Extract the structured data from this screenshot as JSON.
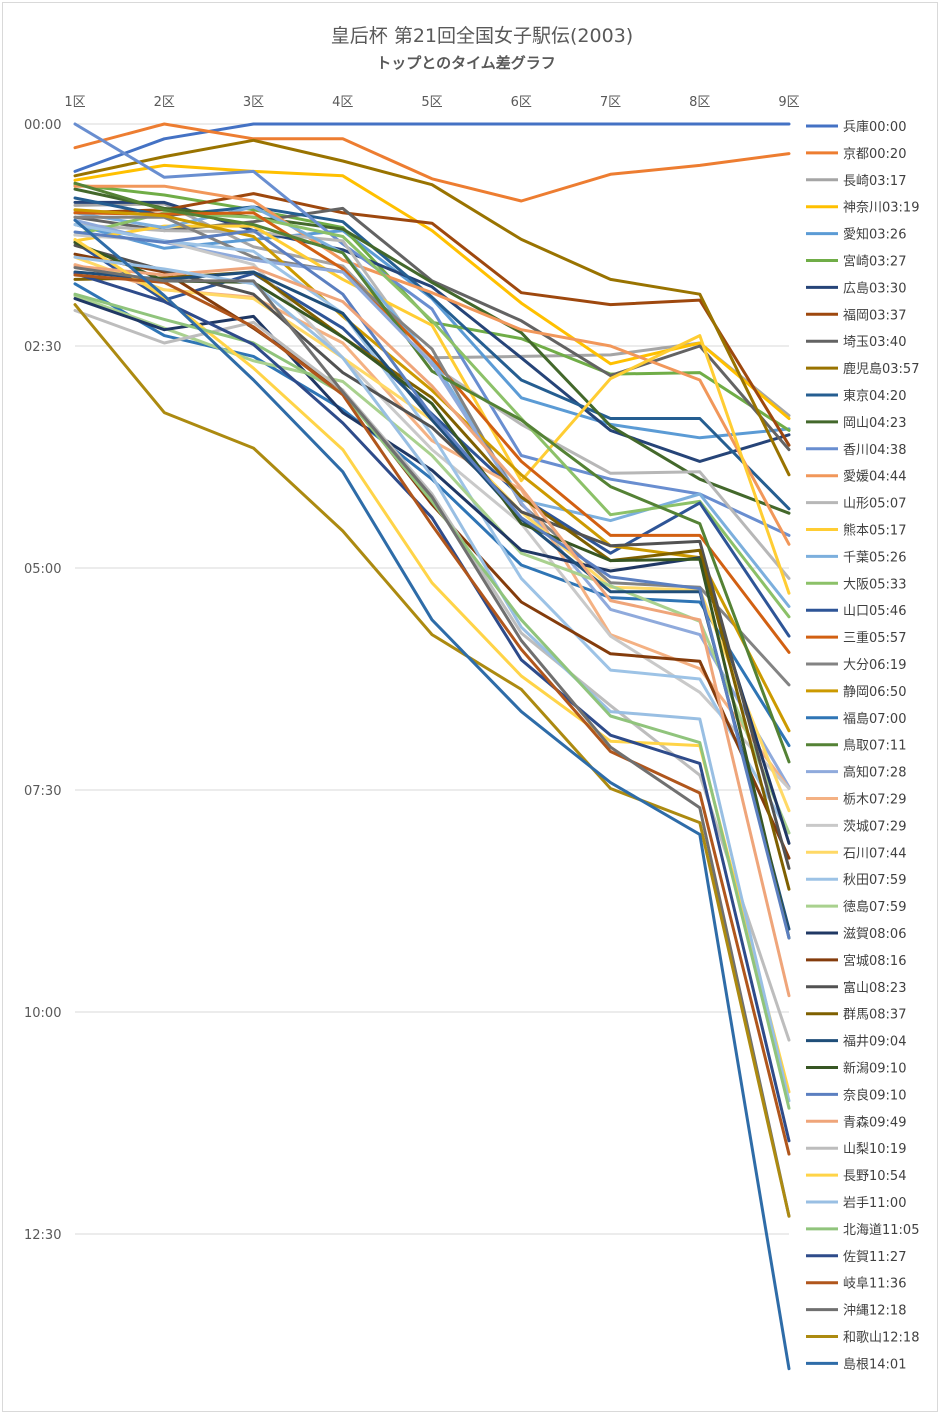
{
  "chart_data": {
    "type": "line",
    "title": "皇后杯 第21回全国女子駅伝(2003)",
    "subtitle": "トップとのタイム差グラフ",
    "xlabel": "",
    "ylabel": "",
    "categories": [
      "1区",
      "2区",
      "3区",
      "4区",
      "5区",
      "6区",
      "7区",
      "8区",
      "9区"
    ],
    "y_unit": "seconds behind leader",
    "y_axis_inverted": true,
    "ylim": [
      0,
      750
    ],
    "yticks": [
      0,
      150,
      300,
      450,
      600,
      750
    ],
    "ytick_labels": [
      "00:00",
      "02:30",
      "05:00",
      "07:30",
      "10:00",
      "12:30"
    ],
    "grid": true,
    "legend_position": "right",
    "series": [
      {
        "name": "兵庫00:00",
        "color": "#4472C4",
        "values": [
          32,
          10,
          0,
          0,
          0,
          0,
          0,
          0,
          0
        ]
      },
      {
        "name": "京都00:20",
        "color": "#ED7D31",
        "values": [
          16,
          0,
          10,
          10,
          37,
          52,
          34,
          28,
          20
        ]
      },
      {
        "name": "長崎03:17",
        "color": "#A5A5A5",
        "values": [
          55,
          54,
          83,
          96,
          158,
          157,
          156,
          148,
          197
        ]
      },
      {
        "name": "神奈川03:19",
        "color": "#FFC000",
        "values": [
          38,
          28,
          32,
          35,
          72,
          121,
          162,
          148,
          199
        ]
      },
      {
        "name": "愛知03:26",
        "color": "#5B9BD5",
        "values": [
          68,
          84,
          78,
          72,
          118,
          185,
          203,
          212,
          206
        ]
      },
      {
        "name": "宮崎03:27",
        "color": "#70AD47",
        "values": [
          41,
          48,
          58,
          70,
          134,
          145,
          169,
          168,
          207
        ]
      },
      {
        "name": "広島03:30",
        "color": "#264478",
        "values": [
          53,
          53,
          72,
          85,
          110,
          158,
          207,
          228,
          210
        ]
      },
      {
        "name": "福岡03:37",
        "color": "#9E480E",
        "values": [
          60,
          58,
          47,
          60,
          67,
          114,
          122,
          119,
          217
        ]
      },
      {
        "name": "埼玉03:40",
        "color": "#636363",
        "values": [
          63,
          72,
          66,
          57,
          106,
          133,
          170,
          150,
          220
        ]
      },
      {
        "name": "鹿児島03:57",
        "color": "#997300",
        "values": [
          35,
          22,
          11,
          25,
          41,
          78,
          105,
          115,
          237
        ]
      },
      {
        "name": "東京04:20",
        "color": "#255E91",
        "values": [
          50,
          62,
          56,
          66,
          117,
          173,
          199,
          199,
          260
        ]
      },
      {
        "name": "岡山04:23",
        "color": "#43682B",
        "values": [
          44,
          57,
          63,
          71,
          107,
          141,
          204,
          240,
          263
        ]
      },
      {
        "name": "香川04:38",
        "color": "#698ED0",
        "values": [
          0,
          36,
          32,
          81,
          125,
          224,
          240,
          250,
          278
        ]
      },
      {
        "name": "愛媛04:44",
        "color": "#F1975A",
        "values": [
          42,
          42,
          52,
          92,
          114,
          139,
          150,
          173,
          284
        ]
      },
      {
        "name": "山形05:07",
        "color": "#B7B7B7",
        "values": [
          68,
          72,
          73,
          79,
          163,
          203,
          236,
          235,
          307
        ]
      },
      {
        "name": "熊本05:17",
        "color": "#FFCD33",
        "values": [
          79,
          69,
          69,
          105,
          136,
          241,
          172,
          143,
          317
        ]
      },
      {
        "name": "千葉05:26",
        "color": "#7CAFDD",
        "values": [
          60,
          70,
          56,
          87,
          159,
          254,
          268,
          250,
          326
        ]
      },
      {
        "name": "大阪05:33",
        "color": "#8CC168",
        "values": [
          75,
          60,
          63,
          76,
          133,
          199,
          264,
          255,
          333
        ]
      },
      {
        "name": "山口05:46",
        "color": "#2E5597",
        "values": [
          80,
          119,
          101,
          138,
          196,
          252,
          290,
          256,
          346
        ]
      },
      {
        "name": "三重05:57",
        "color": "#D26012",
        "values": [
          60,
          61,
          60,
          98,
          158,
          228,
          278,
          278,
          357
        ]
      },
      {
        "name": "大分06:19",
        "color": "#838383",
        "values": [
          63,
          63,
          90,
          100,
          152,
          257,
          310,
          313,
          379
        ]
      },
      {
        "name": "静岡06:50",
        "color": "#CC9A00",
        "values": [
          58,
          62,
          76,
          130,
          180,
          237,
          285,
          293,
          410
        ]
      },
      {
        "name": "福島07:00",
        "color": "#2F75B5",
        "values": [
          108,
          143,
          157,
          193,
          240,
          298,
          320,
          323,
          420
        ]
      },
      {
        "name": "鳥取07:11",
        "color": "#548235",
        "values": [
          40,
          58,
          68,
          87,
          167,
          200,
          245,
          270,
          431
        ]
      },
      {
        "name": "高知07:28",
        "color": "#8FAADC",
        "values": [
          65,
          80,
          92,
          100,
          162,
          256,
          328,
          345,
          448
        ]
      },
      {
        "name": "栃木07:29",
        "color": "#F4B183",
        "values": [
          95,
          112,
          117,
          148,
          214,
          247,
          345,
          368,
          449
        ]
      },
      {
        "name": "茨城07:29",
        "color": "#C9C9C9",
        "values": [
          75,
          79,
          95,
          158,
          220,
          270,
          346,
          384,
          449
        ]
      },
      {
        "name": "石川07:44",
        "color": "#FFD966",
        "values": [
          90,
          112,
          118,
          158,
          200,
          262,
          313,
          315,
          464
        ]
      },
      {
        "name": "秋田07:59",
        "color": "#9DC3E6",
        "values": [
          68,
          79,
          86,
          128,
          210,
          307,
          369,
          375,
          479
        ]
      },
      {
        "name": "徳島07:59",
        "color": "#A9D18E",
        "values": [
          116,
          138,
          160,
          174,
          224,
          290,
          312,
          336,
          479
        ]
      },
      {
        "name": "滋賀08:06",
        "color": "#203864",
        "values": [
          118,
          139,
          130,
          195,
          234,
          288,
          302,
          293,
          486
        ]
      },
      {
        "name": "宮城08:16",
        "color": "#843C0C",
        "values": [
          88,
          100,
          138,
          180,
          257,
          323,
          358,
          363,
          496
        ]
      },
      {
        "name": "富山08:23",
        "color": "#525252",
        "values": [
          82,
          99,
          115,
          168,
          205,
          262,
          285,
          282,
          503
        ]
      },
      {
        "name": "群馬08:37",
        "color": "#7F6000",
        "values": [
          105,
          104,
          100,
          144,
          185,
          252,
          295,
          288,
          517
        ]
      },
      {
        "name": "福井09:04",
        "color": "#1F4E79",
        "values": [
          100,
          105,
          100,
          128,
          200,
          267,
          316,
          316,
          544
        ]
      },
      {
        "name": "新潟09:10",
        "color": "#375623",
        "values": [
          80,
          106,
          107,
          144,
          189,
          270,
          295,
          294,
          550
        ]
      },
      {
        "name": "奈良09:10",
        "color": "#5B7FC0",
        "values": [
          73,
          80,
          72,
          115,
          197,
          266,
          306,
          314,
          550
        ]
      },
      {
        "name": "青森09:49",
        "color": "#EFA57A",
        "values": [
          96,
          102,
          97,
          120,
          177,
          246,
          322,
          335,
          589
        ]
      },
      {
        "name": "山梨10:19",
        "color": "#BDBDBD",
        "values": [
          126,
          148,
          134,
          180,
          250,
          344,
          393,
          440,
          619
        ]
      },
      {
        "name": "長野10:54",
        "color": "#FFD448",
        "values": [
          78,
          117,
          165,
          220,
          310,
          373,
          417,
          420,
          654
        ]
      },
      {
        "name": "岩手11:00",
        "color": "#99BFE3",
        "values": [
          90,
          98,
          108,
          158,
          238,
          340,
          397,
          402,
          660
        ]
      },
      {
        "name": "北海道11:05",
        "color": "#90C47C",
        "values": [
          115,
          132,
          148,
          182,
          255,
          335,
          400,
          418,
          665
        ]
      },
      {
        "name": "佐賀11:27",
        "color": "#2E4B8A",
        "values": [
          101,
          120,
          149,
          202,
          266,
          362,
          413,
          432,
          687
        ]
      },
      {
        "name": "岐阜11:36",
        "color": "#B0561C",
        "values": [
          102,
          107,
          137,
          183,
          271,
          355,
          424,
          452,
          696
        ]
      },
      {
        "name": "沖縄12:18",
        "color": "#707070",
        "values": [
          97,
          106,
          106,
          181,
          252,
          349,
          421,
          462,
          738
        ]
      },
      {
        "name": "和歌山12:18",
        "color": "#AC8A10",
        "values": [
          122,
          195,
          219,
          275,
          345,
          382,
          449,
          472,
          738
        ]
      },
      {
        "name": "島根14:01",
        "color": "#2E6CA8",
        "values": [
          65,
          116,
          173,
          235,
          335,
          397,
          445,
          480,
          841
        ]
      }
    ]
  }
}
